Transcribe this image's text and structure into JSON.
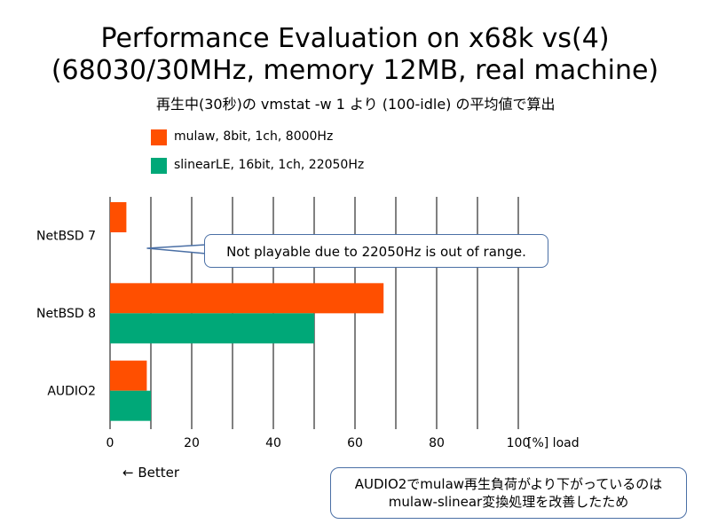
{
  "slide": {
    "title_line1": "Performance Evaluation on x68k vs(4)",
    "title_line2": "(68030/30MHz, memory 12MB, real machine)",
    "subtitle": "再生中(30秒)の vmstat -w 1 より (100-idle) の平均値で算出",
    "callout": "Not playable due to 22050Hz is out of range.",
    "better_label": "← Better",
    "note_line1": "AUDIO2でmulaw再生負荷がより下がっているのは",
    "note_line2": "mulaw-slinear変換処理を改善したため"
  },
  "chart_data": {
    "type": "bar",
    "orientation": "horizontal",
    "title": "Performance Evaluation on x68k vs(4)",
    "categories": [
      "NetBSD 7",
      "NetBSD 8",
      "AUDIO2"
    ],
    "series": [
      {
        "name": "mulaw, 8bit, 1ch, 8000Hz",
        "color": "#ff4f00",
        "values": [
          4,
          67,
          9
        ]
      },
      {
        "name": "slinearLE, 16bit, 1ch, 22050Hz",
        "color": "#00a878",
        "values": [
          null,
          50,
          10
        ]
      }
    ],
    "xlim": [
      0,
      100
    ],
    "xticks": [
      0,
      20,
      40,
      60,
      80,
      100
    ],
    "tick_labels": [
      "0",
      "20",
      "40",
      "60",
      "80",
      "100"
    ],
    "x_unit_label": "[%] load",
    "grid": true,
    "legend_position": "top-left"
  }
}
